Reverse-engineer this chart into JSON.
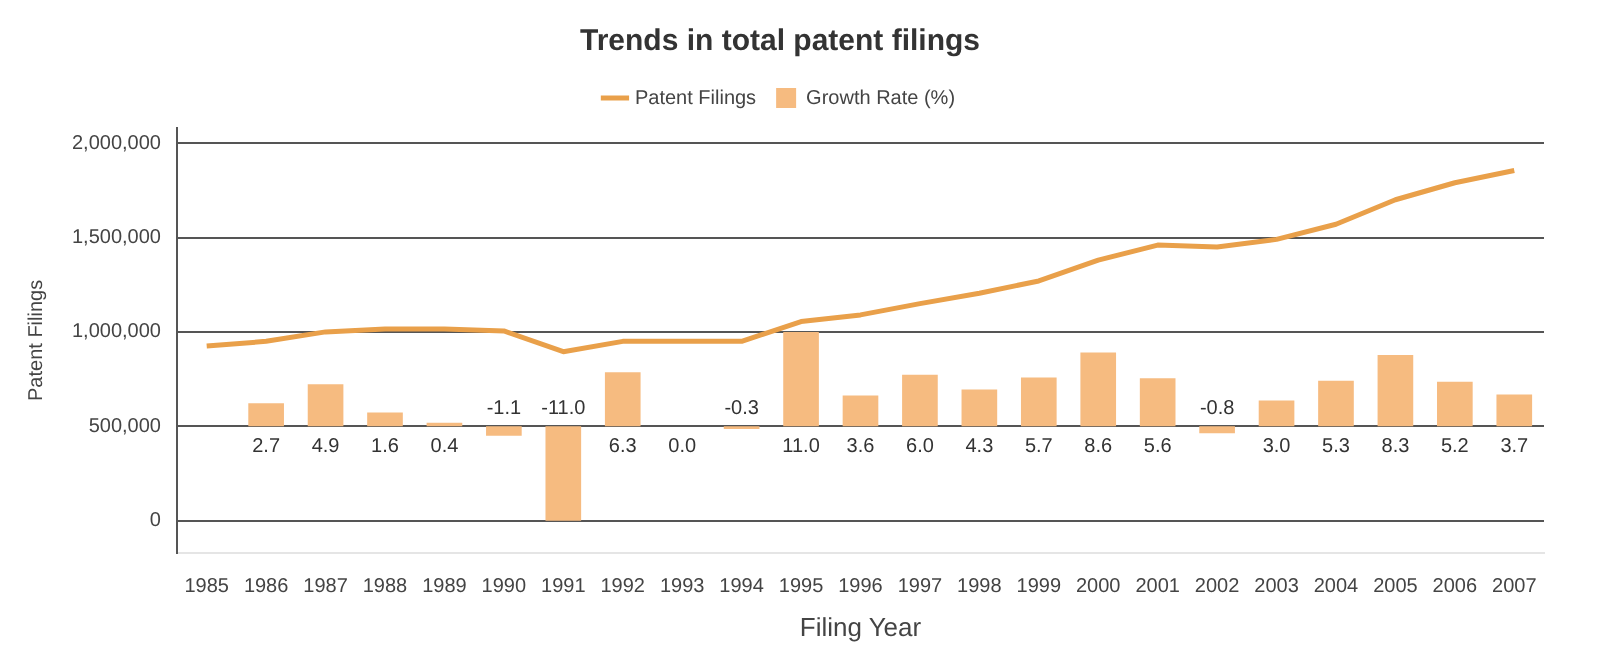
{
  "chart_data": {
    "type": "line",
    "title": "Trends in total patent filings",
    "xlabel": "Filing Year",
    "ylabel": "Patent Filings",
    "categories": [
      "1985",
      "1986",
      "1987",
      "1988",
      "1989",
      "1990",
      "1991",
      "1992",
      "1993",
      "1994",
      "1995",
      "1996",
      "1997",
      "1998",
      "1999",
      "2000",
      "2001",
      "2002",
      "2003",
      "2004",
      "2005",
      "2006",
      "2007"
    ],
    "series": [
      {
        "name": "Patent Filings",
        "color": "#e9a04a",
        "values": [
          925000,
          950000,
          1000000,
          1015000,
          1015000,
          1005000,
          895000,
          950000,
          950000,
          950000,
          1055000,
          1090000,
          1150000,
          1205000,
          1270000,
          1380000,
          1460000,
          1450000,
          1490000,
          1570000,
          1700000,
          1790000,
          1855000
        ]
      },
      {
        "name": "Growth Rate (%)",
        "type": "bar",
        "axis": "y2",
        "color": "#f6bb80",
        "values": [
          null,
          2.7,
          4.9,
          1.6,
          0.4,
          -1.1,
          -11.0,
          6.3,
          0.0,
          -0.3,
          11.0,
          3.6,
          6.0,
          4.3,
          5.7,
          8.6,
          5.6,
          -0.8,
          3.0,
          5.3,
          8.3,
          5.2,
          3.7
        ],
        "value_labels": [
          null,
          "2.7",
          "4.9",
          "1.6",
          "0.4",
          "-1.1",
          "-11.0",
          "6.3",
          "0.0",
          "-0.3",
          "11.0",
          "3.6",
          "6.0",
          "4.3",
          "5.7",
          "8.6",
          "5.6",
          "-0.8",
          "3.0",
          "5.3",
          "8.3",
          "5.2",
          "3.7"
        ]
      }
    ],
    "ylim": [
      -170000,
      2080000
    ],
    "yticks": [
      0,
      {
        "value": 500000,
        "label": "500,000"
      },
      {
        "value": 1000000,
        "label": "1,000,000"
      },
      {
        "value": 1500000,
        "label": "1,500,000"
      },
      {
        "value": 2000000,
        "label": "2,000,000"
      }
    ],
    "y2lim": [
      -14.74,
      34.76
    ],
    "grid": "y",
    "legend": "top",
    "marker": "none",
    "line_style": "solid"
  }
}
